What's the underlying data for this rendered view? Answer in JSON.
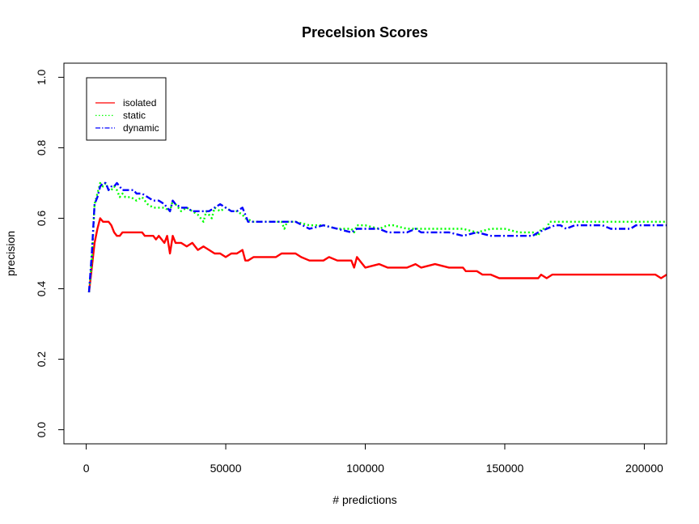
{
  "chart_data": {
    "type": "line",
    "title": "Precelsion Scores",
    "xlabel": "# predictions",
    "ylabel": "precision",
    "xlim": [
      -8000,
      208000
    ],
    "ylim": [
      -0.04,
      1.04
    ],
    "x_ticks": [
      0,
      50000,
      100000,
      150000,
      200000
    ],
    "x_tick_labels": [
      "0",
      "50000",
      "100000",
      "150000",
      "200000"
    ],
    "y_ticks": [
      0.0,
      0.2,
      0.4,
      0.6,
      0.8,
      1.0
    ],
    "y_tick_labels": [
      "0.0",
      "0.2",
      "0.4",
      "0.6",
      "0.8",
      "1.0"
    ],
    "grid": false,
    "legend_position": "top-left",
    "series": [
      {
        "name": "isolated",
        "color": "#ff0000",
        "dash": "solid",
        "points": [
          [
            1000,
            0.39
          ],
          [
            2000,
            0.46
          ],
          [
            3000,
            0.53
          ],
          [
            4000,
            0.57
          ],
          [
            5000,
            0.6
          ],
          [
            6000,
            0.59
          ],
          [
            8000,
            0.59
          ],
          [
            9000,
            0.58
          ],
          [
            10000,
            0.56
          ],
          [
            11000,
            0.55
          ],
          [
            12000,
            0.55
          ],
          [
            13000,
            0.56
          ],
          [
            15000,
            0.56
          ],
          [
            18000,
            0.56
          ],
          [
            20000,
            0.56
          ],
          [
            21000,
            0.55
          ],
          [
            24000,
            0.55
          ],
          [
            25000,
            0.54
          ],
          [
            26000,
            0.55
          ],
          [
            28000,
            0.53
          ],
          [
            29000,
            0.55
          ],
          [
            30000,
            0.5
          ],
          [
            31000,
            0.55
          ],
          [
            32000,
            0.53
          ],
          [
            34000,
            0.53
          ],
          [
            36000,
            0.52
          ],
          [
            38000,
            0.53
          ],
          [
            40000,
            0.51
          ],
          [
            42000,
            0.52
          ],
          [
            44000,
            0.51
          ],
          [
            46000,
            0.5
          ],
          [
            48000,
            0.5
          ],
          [
            50000,
            0.49
          ],
          [
            52000,
            0.5
          ],
          [
            54000,
            0.5
          ],
          [
            56000,
            0.51
          ],
          [
            57000,
            0.48
          ],
          [
            58000,
            0.48
          ],
          [
            60000,
            0.49
          ],
          [
            65000,
            0.49
          ],
          [
            68000,
            0.49
          ],
          [
            70000,
            0.5
          ],
          [
            75000,
            0.5
          ],
          [
            77000,
            0.49
          ],
          [
            80000,
            0.48
          ],
          [
            85000,
            0.48
          ],
          [
            87000,
            0.49
          ],
          [
            90000,
            0.48
          ],
          [
            95000,
            0.48
          ],
          [
            96000,
            0.46
          ],
          [
            97000,
            0.49
          ],
          [
            98000,
            0.48
          ],
          [
            100000,
            0.46
          ],
          [
            105000,
            0.47
          ],
          [
            108000,
            0.46
          ],
          [
            112000,
            0.46
          ],
          [
            115000,
            0.46
          ],
          [
            118000,
            0.47
          ],
          [
            120000,
            0.46
          ],
          [
            125000,
            0.47
          ],
          [
            130000,
            0.46
          ],
          [
            135000,
            0.46
          ],
          [
            136000,
            0.45
          ],
          [
            140000,
            0.45
          ],
          [
            142000,
            0.44
          ],
          [
            145000,
            0.44
          ],
          [
            148000,
            0.43
          ],
          [
            152000,
            0.43
          ],
          [
            155000,
            0.43
          ],
          [
            160000,
            0.43
          ],
          [
            162000,
            0.43
          ],
          [
            163000,
            0.44
          ],
          [
            165000,
            0.43
          ],
          [
            167000,
            0.44
          ],
          [
            170000,
            0.44
          ],
          [
            175000,
            0.44
          ],
          [
            180000,
            0.44
          ],
          [
            185000,
            0.44
          ],
          [
            190000,
            0.44
          ],
          [
            195000,
            0.44
          ],
          [
            200000,
            0.44
          ],
          [
            204000,
            0.44
          ],
          [
            206000,
            0.43
          ],
          [
            208000,
            0.44
          ]
        ]
      },
      {
        "name": "static",
        "color": "#00ff00",
        "dash": "dotted",
        "points": [
          [
            1000,
            0.39
          ],
          [
            2000,
            0.48
          ],
          [
            3000,
            0.64
          ],
          [
            4000,
            0.67
          ],
          [
            5000,
            0.7
          ],
          [
            6000,
            0.69
          ],
          [
            7000,
            0.7
          ],
          [
            8000,
            0.68
          ],
          [
            9000,
            0.68
          ],
          [
            10000,
            0.69
          ],
          [
            11000,
            0.68
          ],
          [
            12000,
            0.66
          ],
          [
            13000,
            0.67
          ],
          [
            14000,
            0.66
          ],
          [
            16000,
            0.66
          ],
          [
            18000,
            0.65
          ],
          [
            20000,
            0.66
          ],
          [
            22000,
            0.64
          ],
          [
            24000,
            0.63
          ],
          [
            26000,
            0.63
          ],
          [
            28000,
            0.63
          ],
          [
            30000,
            0.62
          ],
          [
            31000,
            0.65
          ],
          [
            32000,
            0.64
          ],
          [
            34000,
            0.62
          ],
          [
            36000,
            0.63
          ],
          [
            38000,
            0.62
          ],
          [
            40000,
            0.61
          ],
          [
            42000,
            0.59
          ],
          [
            43000,
            0.62
          ],
          [
            45000,
            0.6
          ],
          [
            46000,
            0.63
          ],
          [
            48000,
            0.62
          ],
          [
            50000,
            0.63
          ],
          [
            52000,
            0.62
          ],
          [
            54000,
            0.62
          ],
          [
            56000,
            0.61
          ],
          [
            57000,
            0.6
          ],
          [
            60000,
            0.59
          ],
          [
            65000,
            0.59
          ],
          [
            70000,
            0.59
          ],
          [
            71000,
            0.57
          ],
          [
            72000,
            0.59
          ],
          [
            75000,
            0.59
          ],
          [
            80000,
            0.58
          ],
          [
            85000,
            0.58
          ],
          [
            90000,
            0.57
          ],
          [
            95000,
            0.57
          ],
          [
            96000,
            0.56
          ],
          [
            97000,
            0.58
          ],
          [
            100000,
            0.58
          ],
          [
            105000,
            0.57
          ],
          [
            108000,
            0.58
          ],
          [
            110000,
            0.58
          ],
          [
            115000,
            0.57
          ],
          [
            120000,
            0.57
          ],
          [
            125000,
            0.57
          ],
          [
            130000,
            0.57
          ],
          [
            135000,
            0.57
          ],
          [
            140000,
            0.56
          ],
          [
            145000,
            0.57
          ],
          [
            150000,
            0.57
          ],
          [
            155000,
            0.56
          ],
          [
            160000,
            0.56
          ],
          [
            162000,
            0.55
          ],
          [
            163000,
            0.57
          ],
          [
            165000,
            0.57
          ],
          [
            166000,
            0.59
          ],
          [
            170000,
            0.59
          ],
          [
            175000,
            0.59
          ],
          [
            180000,
            0.59
          ],
          [
            185000,
            0.59
          ],
          [
            190000,
            0.59
          ],
          [
            195000,
            0.59
          ],
          [
            200000,
            0.59
          ],
          [
            205000,
            0.59
          ],
          [
            208000,
            0.59
          ]
        ]
      },
      {
        "name": "dynamic",
        "color": "#0000ff",
        "dash": "dashed",
        "points": [
          [
            1000,
            0.39
          ],
          [
            2000,
            0.5
          ],
          [
            3000,
            0.64
          ],
          [
            4000,
            0.66
          ],
          [
            5000,
            0.69
          ],
          [
            6000,
            0.7
          ],
          [
            7000,
            0.7
          ],
          [
            8000,
            0.68
          ],
          [
            9000,
            0.69
          ],
          [
            10000,
            0.69
          ],
          [
            11000,
            0.7
          ],
          [
            12000,
            0.69
          ],
          [
            13000,
            0.68
          ],
          [
            15000,
            0.68
          ],
          [
            17000,
            0.68
          ],
          [
            18000,
            0.67
          ],
          [
            20000,
            0.67
          ],
          [
            22000,
            0.66
          ],
          [
            24000,
            0.65
          ],
          [
            26000,
            0.65
          ],
          [
            28000,
            0.64
          ],
          [
            30000,
            0.62
          ],
          [
            31000,
            0.65
          ],
          [
            32000,
            0.64
          ],
          [
            34000,
            0.63
          ],
          [
            36000,
            0.63
          ],
          [
            38000,
            0.62
          ],
          [
            40000,
            0.62
          ],
          [
            42000,
            0.62
          ],
          [
            44000,
            0.62
          ],
          [
            46000,
            0.63
          ],
          [
            48000,
            0.64
          ],
          [
            50000,
            0.63
          ],
          [
            52000,
            0.62
          ],
          [
            54000,
            0.62
          ],
          [
            56000,
            0.63
          ],
          [
            57000,
            0.61
          ],
          [
            58000,
            0.59
          ],
          [
            60000,
            0.59
          ],
          [
            65000,
            0.59
          ],
          [
            70000,
            0.59
          ],
          [
            75000,
            0.59
          ],
          [
            80000,
            0.57
          ],
          [
            85000,
            0.58
          ],
          [
            90000,
            0.57
          ],
          [
            95000,
            0.56
          ],
          [
            97000,
            0.57
          ],
          [
            100000,
            0.57
          ],
          [
            105000,
            0.57
          ],
          [
            108000,
            0.56
          ],
          [
            112000,
            0.56
          ],
          [
            115000,
            0.56
          ],
          [
            118000,
            0.57
          ],
          [
            120000,
            0.56
          ],
          [
            125000,
            0.56
          ],
          [
            130000,
            0.56
          ],
          [
            135000,
            0.55
          ],
          [
            140000,
            0.56
          ],
          [
            145000,
            0.55
          ],
          [
            150000,
            0.55
          ],
          [
            155000,
            0.55
          ],
          [
            160000,
            0.55
          ],
          [
            162000,
            0.56
          ],
          [
            165000,
            0.57
          ],
          [
            168000,
            0.58
          ],
          [
            170000,
            0.58
          ],
          [
            172000,
            0.57
          ],
          [
            175000,
            0.58
          ],
          [
            180000,
            0.58
          ],
          [
            185000,
            0.58
          ],
          [
            188000,
            0.57
          ],
          [
            190000,
            0.57
          ],
          [
            195000,
            0.57
          ],
          [
            197000,
            0.58
          ],
          [
            200000,
            0.58
          ],
          [
            205000,
            0.58
          ],
          [
            208000,
            0.58
          ]
        ]
      }
    ]
  }
}
